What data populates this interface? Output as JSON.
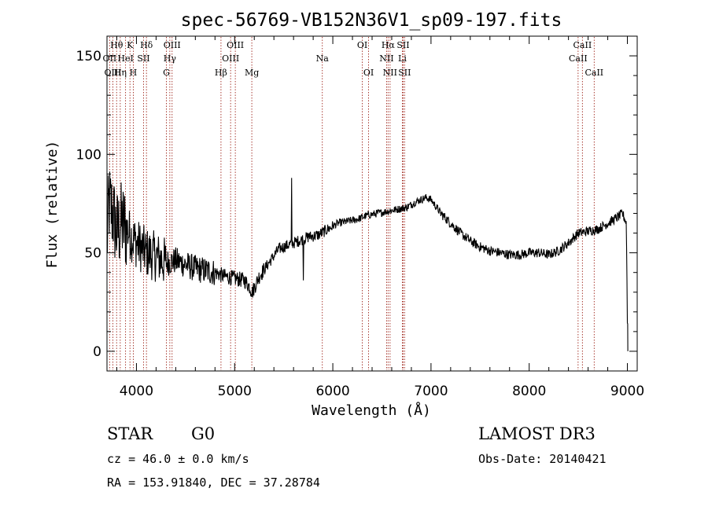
{
  "chart_data": {
    "type": "line",
    "title": "spec-56769-VB152N36V1_sp09-197.fits",
    "xlabel": "Wavelength (Å)",
    "ylabel": "Flux (relative)",
    "xlim": [
      3700,
      9100
    ],
    "ylim": [
      -10,
      160
    ],
    "x_ticks": [
      4000,
      5000,
      6000,
      7000,
      8000,
      9000
    ],
    "y_ticks": [
      0,
      50,
      100,
      150
    ],
    "x_tick_labels": [
      "4000",
      "5000",
      "6000",
      "7000",
      "8000",
      "9000"
    ],
    "y_tick_labels": [
      "0",
      "50",
      "100",
      "150"
    ],
    "grid": false,
    "line_color": "#000000",
    "marker_color": "#a0281e",
    "spectrum_anchors": [
      [
        3700,
        55
      ],
      [
        3720,
        75
      ],
      [
        3760,
        70
      ],
      [
        3800,
        60
      ],
      [
        3850,
        65
      ],
      [
        3900,
        62
      ],
      [
        3950,
        58
      ],
      [
        4000,
        55
      ],
      [
        4100,
        50
      ],
      [
        4200,
        48
      ],
      [
        4300,
        45
      ],
      [
        4400,
        46
      ],
      [
        4500,
        44
      ],
      [
        4600,
        42
      ],
      [
        4700,
        41
      ],
      [
        4800,
        40
      ],
      [
        4900,
        38
      ],
      [
        5000,
        37
      ],
      [
        5100,
        36
      ],
      [
        5150,
        33
      ],
      [
        5180,
        30
      ],
      [
        5250,
        38
      ],
      [
        5350,
        45
      ],
      [
        5450,
        52
      ],
      [
        5550,
        54
      ],
      [
        5650,
        56
      ],
      [
        5750,
        58
      ],
      [
        5850,
        59
      ],
      [
        5950,
        62
      ],
      [
        6050,
        65
      ],
      [
        6150,
        66
      ],
      [
        6250,
        67
      ],
      [
        6350,
        69
      ],
      [
        6450,
        70
      ],
      [
        6550,
        71
      ],
      [
        6650,
        72
      ],
      [
        6750,
        73
      ],
      [
        6850,
        76
      ],
      [
        6950,
        78
      ],
      [
        7000,
        77
      ],
      [
        7100,
        70
      ],
      [
        7200,
        65
      ],
      [
        7300,
        60
      ],
      [
        7400,
        56
      ],
      [
        7500,
        53
      ],
      [
        7600,
        51
      ],
      [
        7700,
        50
      ],
      [
        7800,
        49
      ],
      [
        7900,
        49
      ],
      [
        8000,
        50
      ],
      [
        8100,
        50
      ],
      [
        8200,
        49
      ],
      [
        8300,
        51
      ],
      [
        8400,
        55
      ],
      [
        8500,
        60
      ],
      [
        8600,
        61
      ],
      [
        8700,
        62
      ],
      [
        8800,
        65
      ],
      [
        8900,
        68
      ],
      [
        8950,
        70
      ],
      [
        8990,
        65
      ],
      [
        9000,
        15
      ],
      [
        9005,
        0
      ]
    ],
    "spectrum_noise": [
      {
        "x_from": 3700,
        "x_to": 3900,
        "amplitude": 45
      },
      {
        "x_from": 3900,
        "x_to": 4300,
        "amplitude": 26
      },
      {
        "x_from": 4300,
        "x_to": 4800,
        "amplitude": 14
      },
      {
        "x_from": 4800,
        "x_to": 5300,
        "amplitude": 8
      },
      {
        "x_from": 5300,
        "x_to": 6000,
        "amplitude": 6
      },
      {
        "x_from": 6000,
        "x_to": 7100,
        "amplitude": 4
      },
      {
        "x_from": 7100,
        "x_to": 9000,
        "amplitude": 5
      }
    ],
    "spikes": [
      [
        5580,
        88
      ],
      [
        5760,
        60
      ],
      [
        5700,
        36
      ]
    ],
    "annotations": [
      {
        "label": "Hθ",
        "x": 3798,
        "row": 1
      },
      {
        "label": "OII",
        "x": 3727,
        "row": 2
      },
      {
        "label": "HeI",
        "x": 3889,
        "row": 2
      },
      {
        "label": "OIII",
        "x": 3760,
        "row": 3
      },
      {
        "label": "Hη",
        "x": 3835,
        "row": 3
      },
      {
        "label": "K",
        "x": 3934,
        "row": 1
      },
      {
        "label": "H",
        "x": 3968,
        "row": 3
      },
      {
        "label": "SII",
        "x": 4072,
        "row": 2
      },
      {
        "label": "Hδ",
        "x": 4102,
        "row": 1
      },
      {
        "label": "OIII",
        "x": 4363,
        "row": 1
      },
      {
        "label": "Hγ",
        "x": 4340,
        "row": 2
      },
      {
        "label": "G",
        "x": 4305,
        "row": 3
      },
      {
        "label": "Hβ",
        "x": 4861,
        "row": 3
      },
      {
        "label": "OIII",
        "x": 5007,
        "row": 1
      },
      {
        "label": "OIII",
        "x": 4959,
        "row": 2
      },
      {
        "label": "Mg",
        "x": 5175,
        "row": 3
      },
      {
        "label": "Na",
        "x": 5893,
        "row": 2
      },
      {
        "label": "OI",
        "x": 6300,
        "row": 1
      },
      {
        "label": "OI",
        "x": 6364,
        "row": 3
      },
      {
        "label": "Hα",
        "x": 6563,
        "row": 1
      },
      {
        "label": "NII",
        "x": 6548,
        "row": 2
      },
      {
        "label": "NII",
        "x": 6583,
        "row": 3
      },
      {
        "label": "SII",
        "x": 6716,
        "row": 1
      },
      {
        "label": "Li",
        "x": 6708,
        "row": 2
      },
      {
        "label": "SII",
        "x": 6731,
        "row": 3
      },
      {
        "label": "CaII",
        "x": 8542,
        "row": 1
      },
      {
        "label": "CaII",
        "x": 8498,
        "row": 2
      },
      {
        "label": "CaII",
        "x": 8662,
        "row": 3
      }
    ]
  },
  "info": {
    "object_class": "STAR",
    "subclass": "G0",
    "survey": "LAMOST DR3",
    "redshift_text": "cz = 46.0 ± 0.0 km/s",
    "obs_date": "Obs-Date: 20140421",
    "coords": "RA = 153.91840, DEC =  37.28784"
  }
}
